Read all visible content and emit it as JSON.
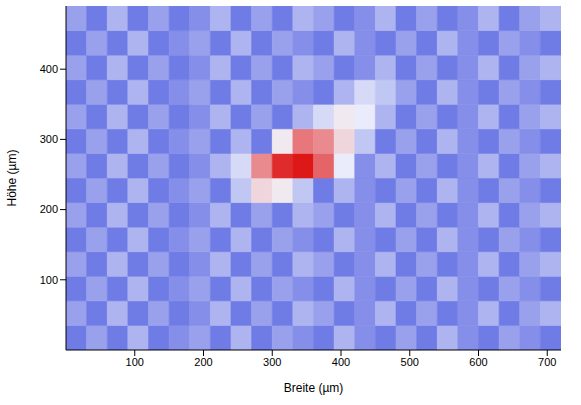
{
  "chart_data": {
    "type": "heatmap",
    "xlabel": "Breite (µm)",
    "ylabel": "Höhe (µm)",
    "xlim": [
      0,
      720
    ],
    "ylim": [
      0,
      490
    ],
    "xticks": [
      100,
      200,
      300,
      400,
      500,
      600,
      700
    ],
    "yticks": [
      100,
      200,
      300,
      400
    ],
    "x_edges": [
      0,
      30,
      60,
      90,
      120,
      150,
      180,
      210,
      240,
      270,
      300,
      330,
      360,
      390,
      420,
      450,
      480,
      510,
      540,
      570,
      600,
      630,
      660,
      690,
      720
    ],
    "y_edges": [
      0,
      35,
      70,
      105,
      140,
      175,
      210,
      245,
      280,
      315,
      350,
      385,
      420,
      455,
      490
    ],
    "zlim": [
      0,
      1
    ],
    "cells": [
      [
        0.1,
        0.2,
        0.1,
        0.25,
        0.1,
        0.15,
        0.2,
        0.1,
        0.25,
        0.1,
        0.2,
        0.15,
        0.1,
        0.25,
        0.15,
        0.1,
        0.2,
        0.1,
        0.25,
        0.15,
        0.1,
        0.2,
        0.15,
        0.1
      ],
      [
        0.2,
        0.1,
        0.25,
        0.1,
        0.2,
        0.1,
        0.15,
        0.25,
        0.1,
        0.2,
        0.1,
        0.25,
        0.2,
        0.1,
        0.15,
        0.25,
        0.1,
        0.2,
        0.1,
        0.15,
        0.25,
        0.1,
        0.2,
        0.25
      ],
      [
        0.1,
        0.2,
        0.1,
        0.25,
        0.1,
        0.15,
        0.2,
        0.1,
        0.25,
        0.1,
        0.2,
        0.15,
        0.1,
        0.25,
        0.15,
        0.1,
        0.2,
        0.1,
        0.25,
        0.15,
        0.1,
        0.2,
        0.15,
        0.1
      ],
      [
        0.2,
        0.1,
        0.25,
        0.1,
        0.2,
        0.1,
        0.15,
        0.25,
        0.1,
        0.2,
        0.1,
        0.25,
        0.2,
        0.1,
        0.15,
        0.25,
        0.1,
        0.2,
        0.1,
        0.15,
        0.25,
        0.1,
        0.2,
        0.25
      ],
      [
        0.1,
        0.2,
        0.1,
        0.25,
        0.1,
        0.15,
        0.2,
        0.1,
        0.25,
        0.1,
        0.2,
        0.15,
        0.1,
        0.25,
        0.15,
        0.1,
        0.2,
        0.1,
        0.25,
        0.15,
        0.1,
        0.2,
        0.15,
        0.1
      ],
      [
        0.2,
        0.1,
        0.25,
        0.1,
        0.2,
        0.1,
        0.15,
        0.25,
        0.1,
        0.2,
        0.1,
        0.25,
        0.2,
        0.1,
        0.15,
        0.25,
        0.1,
        0.2,
        0.1,
        0.15,
        0.25,
        0.1,
        0.2,
        0.25
      ],
      [
        0.1,
        0.2,
        0.1,
        0.25,
        0.1,
        0.15,
        0.2,
        0.1,
        0.3,
        0.5,
        0.45,
        0.3,
        0.1,
        0.25,
        0.15,
        0.1,
        0.2,
        0.1,
        0.25,
        0.15,
        0.1,
        0.2,
        0.15,
        0.1
      ],
      [
        0.2,
        0.1,
        0.25,
        0.1,
        0.2,
        0.1,
        0.15,
        0.25,
        0.35,
        0.7,
        0.95,
        1,
        0.8,
        0.4,
        0.15,
        0.25,
        0.1,
        0.2,
        0.1,
        0.15,
        0.25,
        0.1,
        0.2,
        0.25
      ],
      [
        0.1,
        0.2,
        0.1,
        0.25,
        0.1,
        0.15,
        0.2,
        0.1,
        0.25,
        0.1,
        0.45,
        0.75,
        0.7,
        0.5,
        0.3,
        0.1,
        0.2,
        0.1,
        0.25,
        0.15,
        0.1,
        0.2,
        0.15,
        0.1
      ],
      [
        0.2,
        0.1,
        0.25,
        0.1,
        0.2,
        0.1,
        0.15,
        0.25,
        0.1,
        0.2,
        0.1,
        0.25,
        0.35,
        0.45,
        0.4,
        0.25,
        0.1,
        0.2,
        0.1,
        0.15,
        0.25,
        0.1,
        0.2,
        0.25
      ],
      [
        0.1,
        0.2,
        0.1,
        0.25,
        0.1,
        0.15,
        0.2,
        0.1,
        0.25,
        0.1,
        0.2,
        0.15,
        0.1,
        0.25,
        0.35,
        0.3,
        0.2,
        0.1,
        0.25,
        0.15,
        0.1,
        0.2,
        0.15,
        0.1
      ],
      [
        0.2,
        0.1,
        0.25,
        0.1,
        0.2,
        0.1,
        0.15,
        0.25,
        0.1,
        0.2,
        0.1,
        0.25,
        0.2,
        0.1,
        0.15,
        0.25,
        0.1,
        0.2,
        0.1,
        0.15,
        0.25,
        0.1,
        0.2,
        0.25
      ],
      [
        0.1,
        0.2,
        0.1,
        0.25,
        0.1,
        0.15,
        0.2,
        0.1,
        0.25,
        0.1,
        0.2,
        0.15,
        0.1,
        0.25,
        0.15,
        0.1,
        0.2,
        0.1,
        0.25,
        0.15,
        0.1,
        0.2,
        0.15,
        0.1
      ],
      [
        0.2,
        0.1,
        0.25,
        0.1,
        0.2,
        0.1,
        0.15,
        0.25,
        0.1,
        0.2,
        0.1,
        0.25,
        0.2,
        0.1,
        0.15,
        0.25,
        0.1,
        0.2,
        0.1,
        0.15,
        0.25,
        0.1,
        0.2,
        0.25
      ]
    ]
  }
}
